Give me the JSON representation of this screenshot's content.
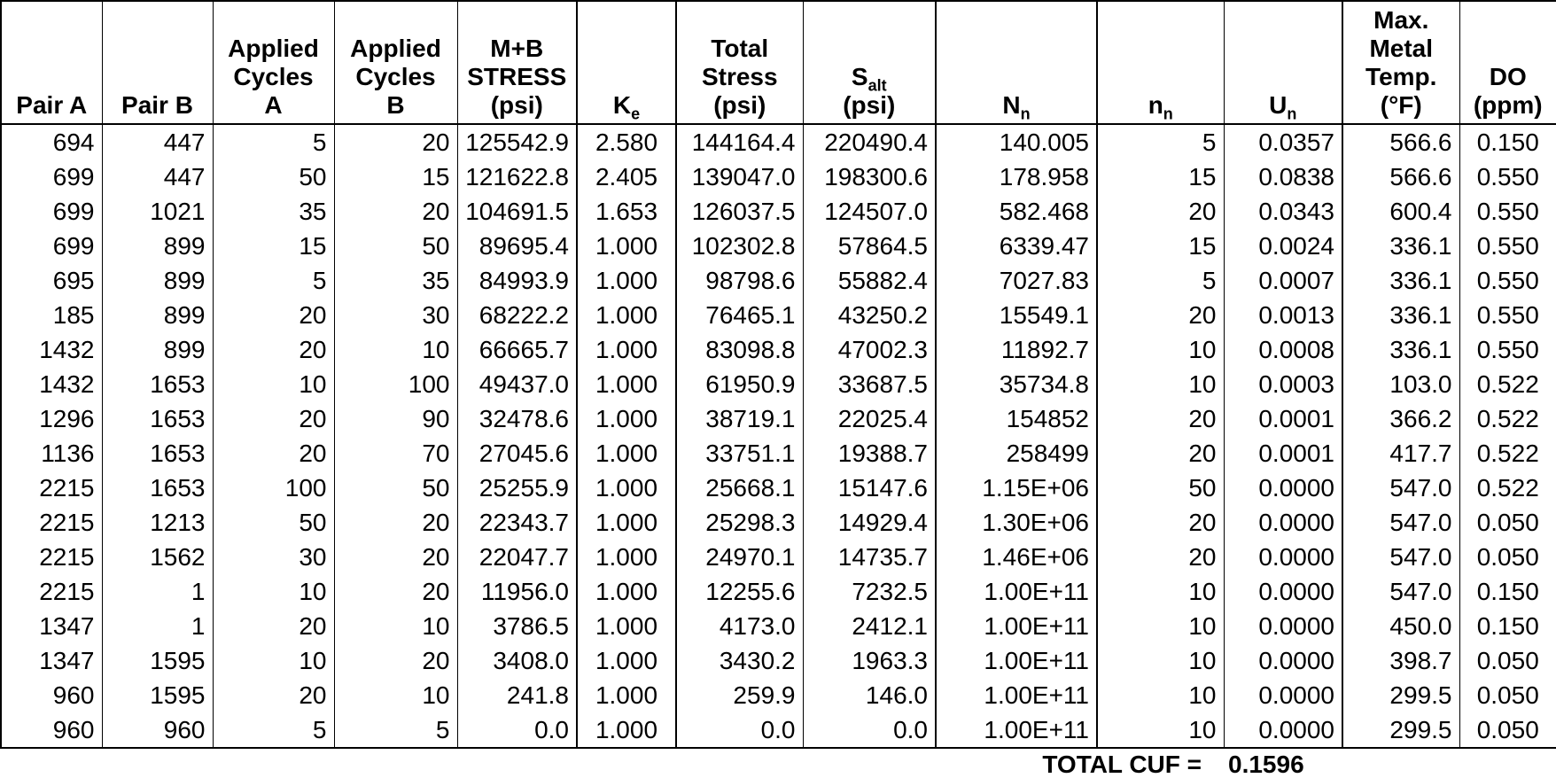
{
  "page": {
    "background": "#ffffff",
    "text_color": "#000000",
    "border_color": "#000000"
  },
  "table": {
    "columns": [
      {
        "id": "pair-a",
        "header_lines": [
          "Pair A"
        ],
        "align": "right"
      },
      {
        "id": "pair-b",
        "header_lines": [
          "Pair B"
        ],
        "align": "right"
      },
      {
        "id": "applied-cycles-a",
        "header_lines": [
          "Applied",
          "Cycles",
          "A"
        ],
        "align": "right"
      },
      {
        "id": "applied-cycles-b",
        "header_lines": [
          "Applied",
          "Cycles",
          "B"
        ],
        "align": "right"
      },
      {
        "id": "mb-stress-psi",
        "header_lines": [
          "M+B",
          "STRESS",
          "(psi)"
        ],
        "align": "right"
      },
      {
        "id": "ke",
        "header_lines": [
          {
            "main": "K",
            "sub": "e"
          }
        ],
        "align": "center"
      },
      {
        "id": "total-stress-psi",
        "header_lines": [
          "Total",
          "Stress",
          "(psi)"
        ],
        "align": "right"
      },
      {
        "id": "salt-psi",
        "header_lines": [
          {
            "main": "S",
            "sub": "alt"
          },
          "(psi)"
        ],
        "align": "right"
      },
      {
        "id": "n-cap-n",
        "header_lines": [
          {
            "main": "N",
            "sub": "n"
          }
        ],
        "align": "right"
      },
      {
        "id": "n-small-n",
        "header_lines": [
          {
            "main": "n",
            "sub": "n"
          }
        ],
        "align": "right"
      },
      {
        "id": "u-n",
        "header_lines": [
          {
            "main": "U",
            "sub": "n"
          }
        ],
        "align": "right"
      },
      {
        "id": "max-metal-temp-f",
        "header_lines": [
          "Max.",
          "Metal",
          "Temp.",
          "(°F)"
        ],
        "align": "right"
      },
      {
        "id": "do-ppm",
        "header_lines": [
          "DO",
          "(ppm)"
        ],
        "align": "center"
      }
    ],
    "rows": [
      [
        "694",
        "447",
        "5",
        "20",
        "125542.9",
        "2.580",
        "144164.4",
        "220490.4",
        "140.005",
        "5",
        "0.0357",
        "566.6",
        "0.150"
      ],
      [
        "699",
        "447",
        "50",
        "15",
        "121622.8",
        "2.405",
        "139047.0",
        "198300.6",
        "178.958",
        "15",
        "0.0838",
        "566.6",
        "0.550"
      ],
      [
        "699",
        "1021",
        "35",
        "20",
        "104691.5",
        "1.653",
        "126037.5",
        "124507.0",
        "582.468",
        "20",
        "0.0343",
        "600.4",
        "0.550"
      ],
      [
        "699",
        "899",
        "15",
        "50",
        "89695.4",
        "1.000",
        "102302.8",
        "57864.5",
        "6339.47",
        "15",
        "0.0024",
        "336.1",
        "0.550"
      ],
      [
        "695",
        "899",
        "5",
        "35",
        "84993.9",
        "1.000",
        "98798.6",
        "55882.4",
        "7027.83",
        "5",
        "0.0007",
        "336.1",
        "0.550"
      ],
      [
        "185",
        "899",
        "20",
        "30",
        "68222.2",
        "1.000",
        "76465.1",
        "43250.2",
        "15549.1",
        "20",
        "0.0013",
        "336.1",
        "0.550"
      ],
      [
        "1432",
        "899",
        "20",
        "10",
        "66665.7",
        "1.000",
        "83098.8",
        "47002.3",
        "11892.7",
        "10",
        "0.0008",
        "336.1",
        "0.550"
      ],
      [
        "1432",
        "1653",
        "10",
        "100",
        "49437.0",
        "1.000",
        "61950.9",
        "33687.5",
        "35734.8",
        "10",
        "0.0003",
        "103.0",
        "0.522"
      ],
      [
        "1296",
        "1653",
        "20",
        "90",
        "32478.6",
        "1.000",
        "38719.1",
        "22025.4",
        "154852",
        "20",
        "0.0001",
        "366.2",
        "0.522"
      ],
      [
        "1136",
        "1653",
        "20",
        "70",
        "27045.6",
        "1.000",
        "33751.1",
        "19388.7",
        "258499",
        "20",
        "0.0001",
        "417.7",
        "0.522"
      ],
      [
        "2215",
        "1653",
        "100",
        "50",
        "25255.9",
        "1.000",
        "25668.1",
        "15147.6",
        "1.15E+06",
        "50",
        "0.0000",
        "547.0",
        "0.522"
      ],
      [
        "2215",
        "1213",
        "50",
        "20",
        "22343.7",
        "1.000",
        "25298.3",
        "14929.4",
        "1.30E+06",
        "20",
        "0.0000",
        "547.0",
        "0.050"
      ],
      [
        "2215",
        "1562",
        "30",
        "20",
        "22047.7",
        "1.000",
        "24970.1",
        "14735.7",
        "1.46E+06",
        "20",
        "0.0000",
        "547.0",
        "0.050"
      ],
      [
        "2215",
        "1",
        "10",
        "20",
        "11956.0",
        "1.000",
        "12255.6",
        "7232.5",
        "1.00E+11",
        "10",
        "0.0000",
        "547.0",
        "0.150"
      ],
      [
        "1347",
        "1",
        "20",
        "10",
        "3786.5",
        "1.000",
        "4173.0",
        "2412.1",
        "1.00E+11",
        "10",
        "0.0000",
        "450.0",
        "0.150"
      ],
      [
        "1347",
        "1595",
        "10",
        "20",
        "3408.0",
        "1.000",
        "3430.2",
        "1963.3",
        "1.00E+11",
        "10",
        "0.0000",
        "398.7",
        "0.050"
      ],
      [
        "960",
        "1595",
        "20",
        "10",
        "241.8",
        "1.000",
        "259.9",
        "146.0",
        "1.00E+11",
        "10",
        "0.0000",
        "299.5",
        "0.050"
      ],
      [
        "960",
        "960",
        "5",
        "5",
        "0.0",
        "1.000",
        "0.0",
        "0.0",
        "1.00E+11",
        "10",
        "0.0000",
        "299.5",
        "0.050"
      ]
    ],
    "footer": {
      "label": "TOTAL CUF =",
      "value": "0.1596"
    }
  }
}
